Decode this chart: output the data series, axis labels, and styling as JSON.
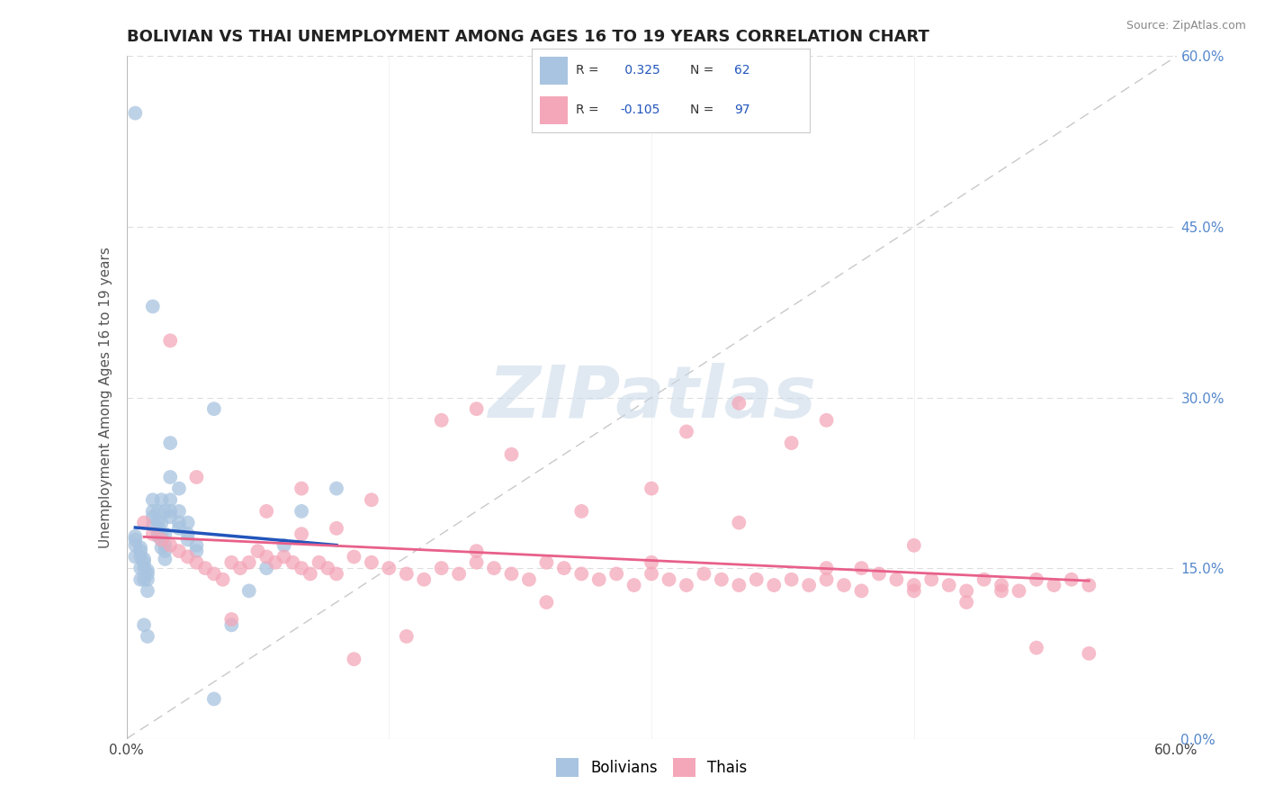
{
  "title": "BOLIVIAN VS THAI UNEMPLOYMENT AMONG AGES 16 TO 19 YEARS CORRELATION CHART",
  "source": "Source: ZipAtlas.com",
  "ylabel": "Unemployment Among Ages 16 to 19 years",
  "xlim": [
    0.0,
    0.6
  ],
  "ylim": [
    0.0,
    0.6
  ],
  "yticks": [
    0.0,
    0.15,
    0.3,
    0.45,
    0.6
  ],
  "xticks": [
    0.0,
    0.15,
    0.3,
    0.45,
    0.6
  ],
  "xtick_labels": [
    "0.0%",
    "",
    "",
    "",
    "60.0%"
  ],
  "ytick_labels": [
    "",
    "",
    "",
    "",
    ""
  ],
  "right_ytick_labels": [
    "0.0%",
    "15.0%",
    "30.0%",
    "45.0%",
    "60.0%"
  ],
  "bolivian_R": 0.325,
  "bolivian_N": 62,
  "thai_R": -0.105,
  "thai_N": 97,
  "bolivian_color": "#a8c4e0",
  "thai_color": "#f4a7b9",
  "bolivian_line_color": "#2255bb",
  "thai_line_color": "#e8608a",
  "background_color": "#ffffff",
  "watermark": "ZIPatlas",
  "watermark_color": "#c8d8e8",
  "bolivian_x": [
    0.005,
    0.008,
    0.01,
    0.012,
    0.015,
    0.018,
    0.02,
    0.022,
    0.025,
    0.005,
    0.008,
    0.01,
    0.012,
    0.015,
    0.018,
    0.02,
    0.022,
    0.025,
    0.03,
    0.005,
    0.008,
    0.01,
    0.012,
    0.015,
    0.018,
    0.02,
    0.022,
    0.025,
    0.03,
    0.035,
    0.005,
    0.008,
    0.01,
    0.012,
    0.015,
    0.018,
    0.02,
    0.022,
    0.025,
    0.03,
    0.035,
    0.04,
    0.005,
    0.008,
    0.01,
    0.012,
    0.015,
    0.018,
    0.02,
    0.022,
    0.025,
    0.03,
    0.035,
    0.04,
    0.05,
    0.06,
    0.07,
    0.08,
    0.09,
    0.1,
    0.12,
    0.05
  ],
  "bolivian_y": [
    0.55,
    0.14,
    0.1,
    0.09,
    0.38,
    0.18,
    0.21,
    0.2,
    0.26,
    0.16,
    0.15,
    0.14,
    0.13,
    0.21,
    0.2,
    0.19,
    0.18,
    0.23,
    0.22,
    0.17,
    0.16,
    0.15,
    0.14,
    0.2,
    0.19,
    0.18,
    0.17,
    0.21,
    0.2,
    0.19,
    0.175,
    0.165,
    0.155,
    0.145,
    0.195,
    0.185,
    0.175,
    0.165,
    0.2,
    0.19,
    0.18,
    0.17,
    0.178,
    0.168,
    0.158,
    0.148,
    0.188,
    0.178,
    0.168,
    0.158,
    0.195,
    0.185,
    0.175,
    0.165,
    0.035,
    0.1,
    0.13,
    0.15,
    0.17,
    0.2,
    0.22,
    0.29
  ],
  "thai_x": [
    0.01,
    0.015,
    0.02,
    0.025,
    0.03,
    0.035,
    0.04,
    0.045,
    0.05,
    0.055,
    0.06,
    0.065,
    0.07,
    0.075,
    0.08,
    0.085,
    0.09,
    0.095,
    0.1,
    0.105,
    0.11,
    0.115,
    0.12,
    0.13,
    0.14,
    0.15,
    0.16,
    0.17,
    0.18,
    0.19,
    0.2,
    0.21,
    0.22,
    0.23,
    0.24,
    0.25,
    0.26,
    0.27,
    0.28,
    0.29,
    0.3,
    0.31,
    0.32,
    0.33,
    0.34,
    0.35,
    0.36,
    0.37,
    0.38,
    0.39,
    0.4,
    0.41,
    0.42,
    0.43,
    0.44,
    0.45,
    0.46,
    0.47,
    0.48,
    0.49,
    0.5,
    0.51,
    0.52,
    0.53,
    0.54,
    0.55,
    0.025,
    0.04,
    0.06,
    0.08,
    0.1,
    0.12,
    0.13,
    0.14,
    0.16,
    0.18,
    0.2,
    0.22,
    0.24,
    0.26,
    0.3,
    0.32,
    0.35,
    0.38,
    0.4,
    0.42,
    0.45,
    0.48,
    0.5,
    0.52,
    0.35,
    0.4,
    0.45,
    0.55,
    0.1,
    0.2,
    0.3
  ],
  "thai_y": [
    0.19,
    0.18,
    0.175,
    0.17,
    0.165,
    0.16,
    0.155,
    0.15,
    0.145,
    0.14,
    0.155,
    0.15,
    0.155,
    0.165,
    0.16,
    0.155,
    0.16,
    0.155,
    0.15,
    0.145,
    0.155,
    0.15,
    0.145,
    0.16,
    0.155,
    0.15,
    0.145,
    0.14,
    0.15,
    0.145,
    0.155,
    0.15,
    0.145,
    0.14,
    0.155,
    0.15,
    0.145,
    0.14,
    0.145,
    0.135,
    0.145,
    0.14,
    0.135,
    0.145,
    0.14,
    0.135,
    0.14,
    0.135,
    0.14,
    0.135,
    0.14,
    0.135,
    0.13,
    0.145,
    0.14,
    0.135,
    0.14,
    0.135,
    0.13,
    0.14,
    0.135,
    0.13,
    0.14,
    0.135,
    0.14,
    0.135,
    0.35,
    0.23,
    0.105,
    0.2,
    0.22,
    0.185,
    0.07,
    0.21,
    0.09,
    0.28,
    0.29,
    0.25,
    0.12,
    0.2,
    0.22,
    0.27,
    0.19,
    0.26,
    0.28,
    0.15,
    0.17,
    0.12,
    0.13,
    0.08,
    0.295,
    0.15,
    0.13,
    0.075,
    0.18,
    0.165,
    0.155
  ]
}
